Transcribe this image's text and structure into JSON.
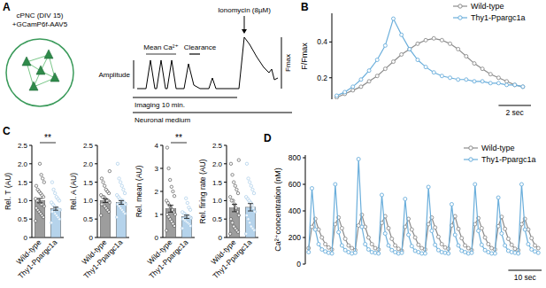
{
  "panels": [
    "A",
    "B",
    "C",
    "D"
  ],
  "diagram": {
    "culture_label": [
      "cPNC (DIV 15)",
      "+GCamP6f-AAV5"
    ],
    "trace_labels": {
      "amplitude": "Amplitude",
      "mean": "Mean Ca²⁺",
      "clearance": "Clearance",
      "drug": "Ionomycin (8µM)",
      "fmax": "Fmax"
    },
    "timeline": {
      "imaging": "Imaging 10 min.",
      "medium": "Neuronal medium"
    }
  },
  "chart_data": [
    {
      "type": "line",
      "ylabel": "F/Fmax",
      "x": [
        0,
        0.5,
        1,
        1.5,
        2,
        2.5,
        3,
        3.5,
        4,
        4.5,
        5,
        5.5,
        6,
        6.5,
        7,
        7.5,
        8,
        8.5,
        9,
        9.5,
        10,
        10.5,
        11,
        11.5
      ],
      "series": [
        {
          "name": "Wild-type",
          "color": "#8c8c8c",
          "marker": "circle",
          "values": [
            0.09,
            0.11,
            0.13,
            0.15,
            0.18,
            0.21,
            0.25,
            0.29,
            0.33,
            0.36,
            0.39,
            0.41,
            0.42,
            0.41,
            0.39,
            0.36,
            0.32,
            0.28,
            0.25,
            0.22,
            0.2,
            0.18,
            0.16,
            0.15
          ]
        },
        {
          "name": "Thy1-Ppargc1a",
          "color": "#6aaedb",
          "marker": "circle",
          "values": [
            0.1,
            0.12,
            0.15,
            0.19,
            0.24,
            0.3,
            0.38,
            0.53,
            0.44,
            0.36,
            0.3,
            0.26,
            0.23,
            0.21,
            0.2,
            0.19,
            0.19,
            0.18,
            0.18,
            0.17,
            0.17,
            0.16,
            0.16,
            0.15
          ]
        }
      ],
      "xlim": [
        -0.3,
        12
      ],
      "ylim": [
        0.08,
        0.56
      ],
      "yticks": [
        0.2,
        0.4
      ],
      "tick_labels": "y",
      "legend": "top-right",
      "scale_bar": {
        "value": 2,
        "label": "2 sec"
      }
    },
    {
      "type": "bar",
      "ylabel": "Rel. T (AU)",
      "categories": [
        "Wild-type",
        "Thy1-Ppargc1a"
      ],
      "values": [
        1.0,
        0.78
      ],
      "errors": [
        0.06,
        0.04
      ],
      "colors": [
        "#8c8c8c",
        "#a8cbe8"
      ],
      "points": [
        [
          0.45,
          0.55,
          0.6,
          0.65,
          0.7,
          0.75,
          0.8,
          0.85,
          0.9,
          0.9,
          0.95,
          1.0,
          1.0,
          1.05,
          1.1,
          1.15,
          1.2,
          1.25,
          1.3,
          1.4,
          1.5,
          1.6,
          1.7,
          2.0
        ],
        [
          0.4,
          0.5,
          0.55,
          0.6,
          0.65,
          0.7,
          0.7,
          0.75,
          0.75,
          0.8,
          0.8,
          0.85,
          0.9,
          0.95,
          1.0,
          1.05,
          1.1,
          1.2,
          1.3,
          1.5
        ]
      ],
      "ylim": [
        0,
        2.5
      ],
      "yticks": [
        0,
        0.5,
        {
          "value": 1,
          "label": "1.0"
        },
        1.5,
        {
          "value": 2,
          "label": "2.0"
        },
        2.5
      ],
      "annotation": "**"
    },
    {
      "type": "bar",
      "ylabel": "Rel. A (AU)",
      "categories": [
        "Wild-type",
        "Thy1-Ppargc1a"
      ],
      "values": [
        1.0,
        0.95
      ],
      "errors": [
        0.05,
        0.05
      ],
      "colors": [
        "#8c8c8c",
        "#a8cbe8"
      ],
      "points": [
        [
          0.6,
          0.7,
          0.75,
          0.8,
          0.85,
          0.9,
          0.9,
          0.95,
          1.0,
          1.0,
          1.05,
          1.1,
          1.1,
          1.15,
          1.2,
          1.25,
          1.3,
          1.4,
          1.5,
          1.6,
          1.8
        ],
        [
          0.55,
          0.65,
          0.7,
          0.75,
          0.8,
          0.85,
          0.9,
          0.9,
          0.95,
          1.0,
          1.0,
          1.05,
          1.1,
          1.15,
          1.2,
          1.3,
          1.4,
          1.5,
          1.6,
          2.0
        ]
      ],
      "ylim": [
        0,
        2.5
      ],
      "yticks": [
        0,
        0.5,
        {
          "value": 1,
          "label": "1.0"
        },
        1.5,
        {
          "value": 2,
          "label": "2.0"
        },
        2.5
      ]
    },
    {
      "type": "bar",
      "ylabel": "Rel. mean (AU)",
      "categories": [
        "Wild-type",
        "Thy1-Ppargc1a"
      ],
      "values": [
        1.25,
        0.9
      ],
      "errors": [
        0.15,
        0.07
      ],
      "colors": [
        "#8c8c8c",
        "#a8cbe8"
      ],
      "points": [
        [
          0.3,
          0.5,
          0.6,
          0.7,
          0.8,
          0.9,
          1.0,
          1.0,
          1.1,
          1.2,
          1.3,
          1.4,
          1.5,
          1.6,
          1.8,
          2.0,
          2.2,
          2.5,
          3.0,
          3.9
        ],
        [
          0.4,
          0.5,
          0.6,
          0.65,
          0.7,
          0.75,
          0.8,
          0.85,
          0.9,
          0.9,
          0.95,
          1.0,
          1.05,
          1.1,
          1.2,
          1.3,
          1.5,
          1.7
        ]
      ],
      "ylim": [
        0,
        4
      ],
      "yticks": [
        0,
        1,
        2,
        3,
        4
      ],
      "annotation": "**"
    },
    {
      "type": "bar",
      "ylabel": "Rel. firing rate (AU)",
      "categories": [
        "Wild-type",
        "Thy1-Ppargc1a"
      ],
      "values": [
        0.8,
        0.82
      ],
      "errors": [
        0.1,
        0.1
      ],
      "colors": [
        "#8c8c8c",
        "#a8cbe8"
      ],
      "points": [
        [
          0.1,
          0.15,
          0.2,
          0.25,
          0.3,
          0.4,
          0.5,
          0.6,
          0.7,
          0.8,
          0.9,
          1.0,
          1.0,
          1.1,
          1.2,
          1.3,
          1.4,
          1.5,
          1.7,
          2.0,
          2.1
        ],
        [
          0.1,
          0.2,
          0.25,
          0.3,
          0.4,
          0.5,
          0.6,
          0.7,
          0.8,
          0.9,
          0.95,
          1.0,
          1.05,
          1.1,
          1.2,
          1.3,
          1.4,
          1.5,
          1.6,
          2.0
        ]
      ],
      "ylim": [
        0,
        2.5
      ],
      "yticks": [
        0,
        0.5,
        {
          "value": 1,
          "label": "1.0"
        },
        1.5,
        {
          "value": 2,
          "label": "2.0"
        },
        2.5
      ]
    },
    {
      "type": "line",
      "ylabel": "Ca²⁺concentration (nM)",
      "x": [
        0,
        1,
        2,
        3,
        4,
        5,
        6,
        7,
        8,
        9,
        10,
        11,
        12,
        13,
        14,
        15,
        16,
        17,
        18,
        19,
        20,
        21,
        22,
        23,
        24,
        25,
        26,
        27,
        28,
        29,
        30,
        31,
        32,
        33,
        34,
        35,
        36,
        37,
        38,
        39,
        40,
        41,
        42,
        43,
        44,
        45,
        46,
        47,
        48,
        49,
        50,
        51,
        52,
        53,
        54,
        55,
        56,
        57,
        58,
        59,
        60,
        61,
        62,
        63,
        64,
        65,
        66,
        67,
        68,
        69
      ],
      "series": [
        {
          "name": "Wild-type",
          "color": "#8c8c8c",
          "marker": "circle",
          "values": [
            120,
            280,
            340,
            260,
            200,
            150,
            125,
            110,
            300,
            350,
            270,
            190,
            140,
            120,
            105,
            290,
            370,
            280,
            200,
            150,
            120,
            110,
            310,
            360,
            270,
            190,
            140,
            115,
            100,
            280,
            340,
            260,
            200,
            145,
            120,
            110,
            300,
            350,
            275,
            205,
            150,
            125,
            115,
            290,
            360,
            265,
            195,
            140,
            120,
            105,
            300,
            345,
            270,
            200,
            150,
            120,
            110,
            285,
            355,
            265,
            190,
            145,
            115,
            105,
            300,
            340,
            260,
            195,
            140,
            120
          ]
        },
        {
          "name": "Thy1-Ppargc1a",
          "color": "#6aaedb",
          "marker": "circle",
          "values": [
            90,
            570,
            260,
            150,
            110,
            95,
            85,
            80,
            600,
            240,
            140,
            105,
            90,
            80,
            85,
            790,
            280,
            150,
            110,
            90,
            85,
            80,
            520,
            230,
            140,
            105,
            90,
            80,
            85,
            490,
            220,
            135,
            100,
            90,
            80,
            80,
            580,
            250,
            145,
            105,
            90,
            85,
            80,
            450,
            220,
            140,
            100,
            90,
            80,
            85,
            600,
            250,
            145,
            105,
            90,
            80,
            80,
            500,
            230,
            140,
            100,
            90,
            85,
            80,
            600,
            260,
            150,
            110,
            95,
            85
          ]
        }
      ],
      "xlim": [
        -1,
        70
      ],
      "ylim": [
        0,
        820
      ],
      "yticks": [
        0,
        200,
        400,
        600,
        800
      ],
      "tick_labels": "y",
      "legend": "top-right",
      "scale_bar": {
        "value": 10,
        "label": "10 sec"
      }
    }
  ]
}
